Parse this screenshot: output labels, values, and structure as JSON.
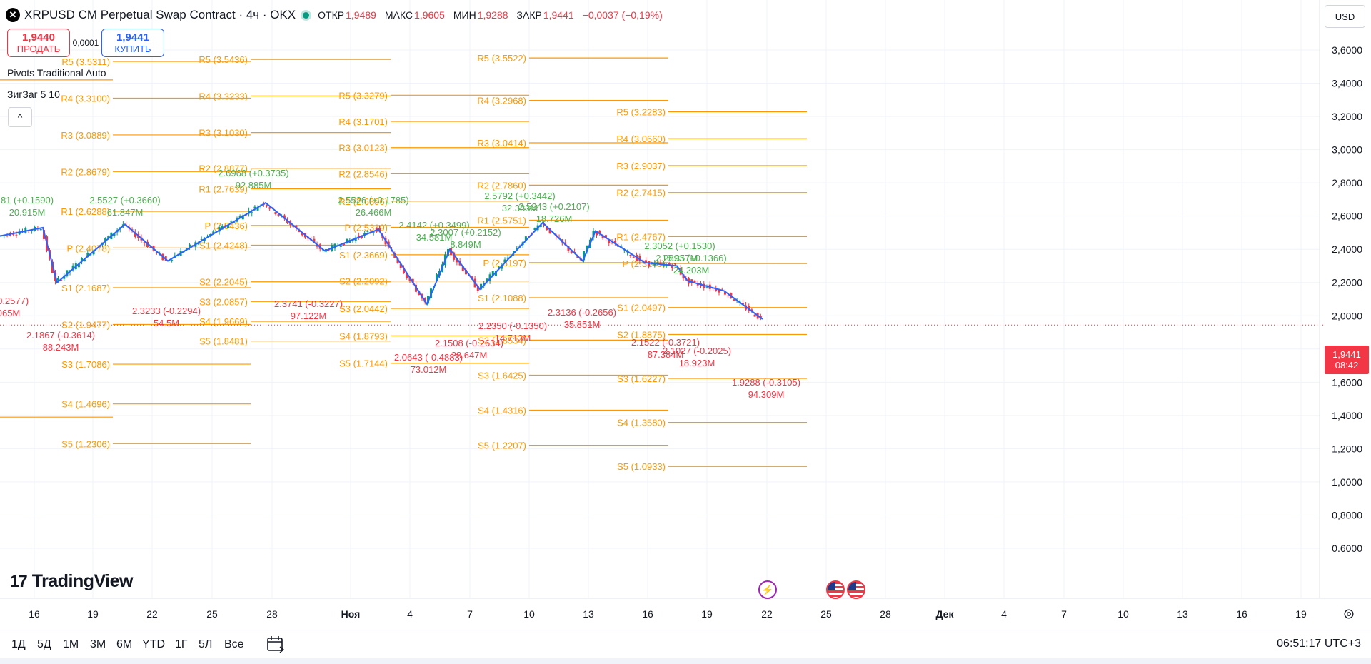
{
  "header": {
    "symbol_title": "XRPUSD CM Perpetual Swap Contract · 4ч · OKX",
    "ohlc": [
      {
        "label": "ОТКР",
        "value": "1,9489"
      },
      {
        "label": "МАКС",
        "value": "1,9605"
      },
      {
        "label": "МИН",
        "value": "1,9288"
      },
      {
        "label": "ЗАКР",
        "value": "1,9441"
      }
    ],
    "change": "−0,0037 (−0,19%)",
    "currency": "USD"
  },
  "trade": {
    "sell_price": "1,9440",
    "sell_label": "ПРОДАТЬ",
    "spread": "0,0001",
    "buy_price": "1,9441",
    "buy_label": "КУПИТЬ"
  },
  "indicators": {
    "pivots": "Pivots Traditional Auto",
    "zigzag": "ЗигЗаг 5 10",
    "collapse": "^"
  },
  "price_axis": {
    "labels": [
      "3,6000",
      "3,4000",
      "3,2000",
      "3,0000",
      "2,8000",
      "2,6000",
      "2,4000",
      "2,2000",
      "2,0000",
      "1,8000",
      "1,6000",
      "1,4000",
      "1,2000",
      "1,0000",
      "0,8000",
      "0.6000"
    ],
    "current_price": "1,9441",
    "countdown": "08:42"
  },
  "time_axis": {
    "labels": [
      "16",
      "19",
      "22",
      "25",
      "28",
      "Ноя",
      "4",
      "7",
      "10",
      "13",
      "16",
      "19",
      "22",
      "25",
      "28",
      "Дек",
      "4",
      "7",
      "10",
      "13",
      "16",
      "19"
    ]
  },
  "periods": [
    "1Д",
    "5Д",
    "1М",
    "3М",
    "6М",
    "YTD",
    "1Г",
    "5Л",
    "Все"
  ],
  "clock": "06:51:17 UTC+3",
  "branding": "TradingView",
  "colors": {
    "pivot": "#ff9800",
    "up": "#089981",
    "down": "#f23645",
    "zigzag": "#2962ff",
    "grid": "#f0f3fa",
    "label_green": "#4caf50"
  },
  "chart_data": {
    "type": "candlestick",
    "pivot_levels": [
      {
        "period": 1,
        "levels": [
          "R1 (2.6288)",
          "P (2.4078)",
          "S1 (2.1687)",
          "S2 (1.9477)",
          "S3 (1.7086)",
          "S4 (1.4696)",
          "S5 (1.2306)",
          "R2 (2.8679)",
          "R3 (3.0889)",
          "R4 (3.3100)",
          "R5 (3.5311)"
        ]
      },
      {
        "period": 2,
        "levels": [
          "R5 (3.5436)",
          "R4 (3.3233)",
          "R3 (3.1030)",
          "R2 (2.8877)",
          "R1 (2.7639)",
          "P (2.5436)",
          "S1 (2.4248)",
          "S2 (2.2045)",
          "S3 (2.0857)",
          "S4 (1.9669)",
          "S5 (1.8481)"
        ]
      },
      {
        "period": 3,
        "levels": [
          "R5 (3.3279)",
          "R4 (3.1701)",
          "R3 (3.0123)",
          "R2 (2.8546)",
          "R1 (2.6896)",
          "P (2.5319)",
          "S1 (2.3669)",
          "S2 (2.2092)",
          "S3 (2.0442)",
          "S4 (1.8793)",
          "S5 (1.7144)"
        ]
      },
      {
        "period": 4,
        "levels": [
          "R5 (3.5522)",
          "R4 (3.2968)",
          "R3 (3.0414)",
          "R2 (2.7860)",
          "R1 (2.5751)",
          "P (2.3197)",
          "S1 (2.1088)",
          "S2 (1.8534)",
          "S3 (1.6425)",
          "S4 (1.4316)",
          "S5 (1.2207)"
        ]
      },
      {
        "period": 5,
        "levels": [
          "R5 (3.2283)",
          "R4 (3.0660)",
          "R3 (2.9037)",
          "R2 (2.7415)",
          "R1 (2.4767)",
          "P (2.3145)",
          "S1 (2.0497)",
          "S2 (1.8875)",
          "S3 (1.6227)",
          "S4 (1.3580)",
          "S5 (1.0933)"
        ]
      }
    ],
    "zigzag_labels": [
      {
        "price": "81 (+0.1590)",
        "volume": "20.915M",
        "dir": "up"
      },
      {
        "price": "2.5527 (+0.3660)",
        "volume": "61.847M",
        "dir": "up"
      },
      {
        "price": "2.6968 (+0.3735)",
        "volume": "92.885M",
        "dir": "up"
      },
      {
        "price": "2.5526 (+0.1785)",
        "volume": "26.466M",
        "dir": "up"
      },
      {
        "price": "2.4142 (+0.3499)",
        "volume": "34.581M",
        "dir": "up"
      },
      {
        "price": "2.3007 (+0.2152)",
        "volume": "8.849M",
        "dir": "up"
      },
      {
        "price": "2.5792 (+0.3442)",
        "volume": "32.333M",
        "dir": "up"
      },
      {
        "price": "2.5243 (+0.2107)",
        "volume": "18.726M",
        "dir": "up"
      },
      {
        "price": "2.3052 (+0.1530)",
        "volume": "16.357M",
        "dir": "up"
      },
      {
        "price": "2.2893 (+0.1366)",
        "volume": "24.203M",
        "dir": "up"
      },
      {
        "price": "( -0.2577)",
        "volume": "065M",
        "dir": "down"
      },
      {
        "price": "2.1867 (-0.3614)",
        "volume": "88.243M",
        "dir": "down"
      },
      {
        "price": "2.3233 (-0.2294)",
        "volume": "54.5M",
        "dir": "down"
      },
      {
        "price": "2.3741 (-0.3227)",
        "volume": "97.122M",
        "dir": "down"
      },
      {
        "price": "2.0643 (-0.4883)",
        "volume": "73.012M",
        "dir": "down"
      },
      {
        "price": "2.1508 (-0.2634)",
        "volume": "28.647M",
        "dir": "down"
      },
      {
        "price": "2.2350 (-0.1350)",
        "volume": "14.713M",
        "dir": "down"
      },
      {
        "price": "2.3136 (-0.2656)",
        "volume": "35.851M",
        "dir": "down"
      },
      {
        "price": "2.1522 (-0.3721)",
        "volume": "87.384M",
        "dir": "down"
      },
      {
        "price": "2.1027 (-0.2025)",
        "volume": "18.923M",
        "dir": "down"
      },
      {
        "price": "1.9288 (-0.3105)",
        "volume": "94.309M",
        "dir": "down"
      }
    ]
  }
}
